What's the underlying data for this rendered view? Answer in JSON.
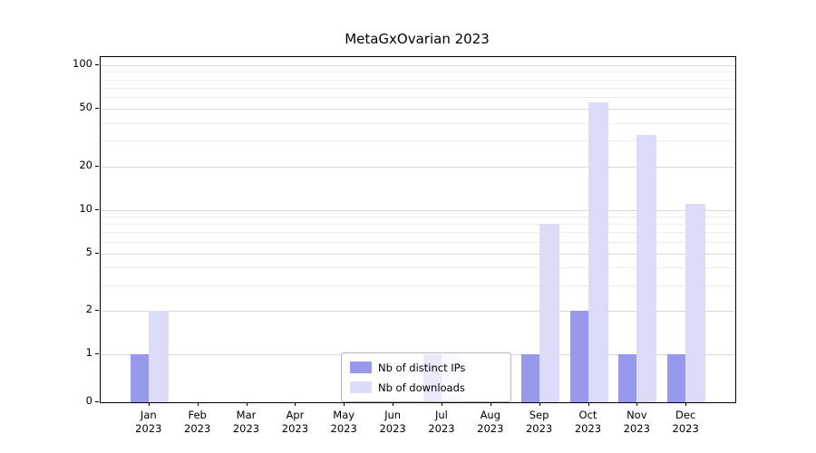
{
  "chart_data": {
    "type": "bar",
    "title": "MetaGxOvarian 2023",
    "x_year": "2023",
    "categories": [
      "Jan 2023",
      "Feb 2023",
      "Mar 2023",
      "Apr 2023",
      "May 2023",
      "Jun 2023",
      "Jul 2023",
      "Aug 2023",
      "Sep 2023",
      "Oct 2023",
      "Nov 2023",
      "Dec 2023"
    ],
    "months": [
      "Jan",
      "Feb",
      "Mar",
      "Apr",
      "May",
      "Jun",
      "Jul",
      "Aug",
      "Sep",
      "Oct",
      "Nov",
      "Dec"
    ],
    "series": [
      {
        "name": "Nb of distinct IPs",
        "color": "#9898ec",
        "values": [
          1,
          0,
          0,
          0,
          0,
          0,
          1,
          0,
          1,
          2,
          1,
          1
        ]
      },
      {
        "name": "Nb of downloads",
        "color": "#dcdcf9",
        "values": [
          2,
          0,
          0,
          0,
          0,
          0,
          1,
          0,
          8,
          55,
          33,
          11
        ]
      }
    ],
    "yscale": "symlog",
    "yticks": [
      0,
      1,
      2,
      5,
      10,
      20,
      50,
      100
    ],
    "minor_yticks": [
      3,
      4,
      6,
      7,
      8,
      9,
      30,
      40,
      60,
      70,
      80,
      90
    ],
    "ylim": [
      0,
      110
    ],
    "grid": true,
    "legend_position": "bottom-center",
    "legend_framealpha": 0.8
  }
}
